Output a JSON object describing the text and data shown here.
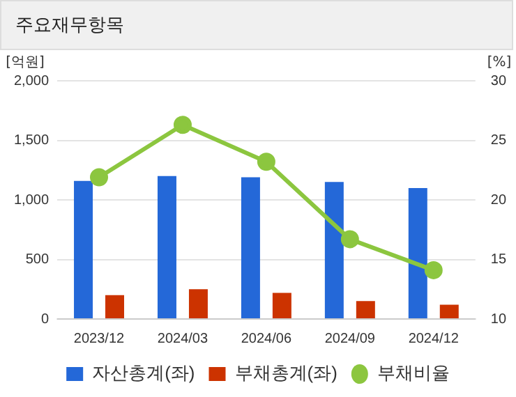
{
  "chart_data": {
    "type": "bar",
    "title": "주요재무항목",
    "ylabel": "[억원]",
    "y2label": "[%]",
    "categories": [
      "2023/12",
      "2024/03",
      "2024/06",
      "2024/09",
      "2024/12"
    ],
    "series": [
      {
        "name": "자산총계(좌)",
        "color": "#2468d8",
        "values": [
          1160,
          1200,
          1190,
          1150,
          1100
        ]
      },
      {
        "name": "부채총계(좌)",
        "color": "#cc3300",
        "values": [
          200,
          250,
          220,
          150,
          120
        ]
      },
      {
        "name": "부채비율",
        "type": "line",
        "axis": "y2",
        "color": "#8cc63f",
        "values": [
          21.9,
          26.3,
          23.2,
          16.7,
          14.1
        ]
      }
    ],
    "ylim": [
      0,
      2000
    ],
    "yticks": [
      0,
      {
        "value": 500,
        "label": "500"
      },
      {
        "value": 1000,
        "label": "1,000"
      },
      {
        "value": 1500,
        "label": "1,500"
      },
      {
        "value": 2000,
        "label": "2,000"
      }
    ],
    "y2lim": [
      10,
      30
    ],
    "y2ticks": [
      10,
      15,
      20,
      25,
      30
    ],
    "grid": "y",
    "legend": "bottom",
    "marker": "circle"
  }
}
